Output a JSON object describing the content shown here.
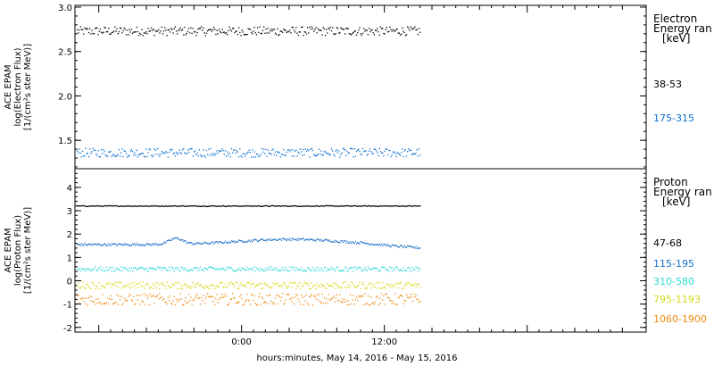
{
  "chart_data": {
    "type": "scatter",
    "xlabel": "hours:minutes, May 14, 2016 - May 15, 2016",
    "x_tick_labels": [
      "0:00",
      "12:00"
    ],
    "x_range_hours": [
      -14,
      34
    ],
    "data_end_hour": 15,
    "panels": [
      {
        "id": "electron",
        "ylabel": [
          "ACE EPAM",
          "log(Electron Flux)",
          "[1/(cm²s ster MeV)]"
        ],
        "ylim": [
          1.18,
          3.02
        ],
        "yticks": [
          1.5,
          2.0,
          2.5,
          3.0
        ],
        "ytick_labels": [
          "1.5",
          "2.0",
          "2.5",
          "3.0"
        ],
        "minor_step": 0.1,
        "legend_title": [
          "Electron",
          "Energy ran",
          "[keV]"
        ],
        "series": [
          {
            "name": "38-53",
            "color": "#000000",
            "level": 2.73,
            "noise": 0.05,
            "variation": "flat"
          },
          {
            "name": "175-315",
            "color": "#0a6fd0",
            "level": 1.36,
            "noise": 0.05,
            "variation": "flat"
          }
        ]
      },
      {
        "id": "proton",
        "ylabel": [
          "ACE EPAM",
          "log(Proton Flux)",
          "[1/(cm²s ster MeV)]"
        ],
        "ylim": [
          -2.2,
          4.8
        ],
        "yticks": [
          -2,
          -1,
          0,
          1,
          2,
          3,
          4
        ],
        "ytick_labels": [
          "-2",
          "-1",
          "0",
          "1",
          "2",
          "3",
          "4"
        ],
        "minor_step": 0.2,
        "legend_title": [
          "Proton",
          "Energy ran",
          "[keV]"
        ],
        "series": [
          {
            "name": "47-68",
            "color": "#000000",
            "level": 3.2,
            "noise": 0.02,
            "variation": "flat"
          },
          {
            "name": "115-195",
            "color": "#1a6fc8",
            "level": 1.55,
            "noise": 0.05,
            "variation": "hump"
          },
          {
            "name": "310-580",
            "color": "#2cd8d0",
            "level": 0.5,
            "noise": 0.1,
            "variation": "flat"
          },
          {
            "name": "795-1193",
            "color": "#d6d81a",
            "level": -0.2,
            "noise": 0.15,
            "variation": "flat"
          },
          {
            "name": "1060-1900",
            "color": "#f08a10",
            "level": -0.8,
            "noise": 0.25,
            "variation": "flat"
          }
        ]
      }
    ]
  }
}
